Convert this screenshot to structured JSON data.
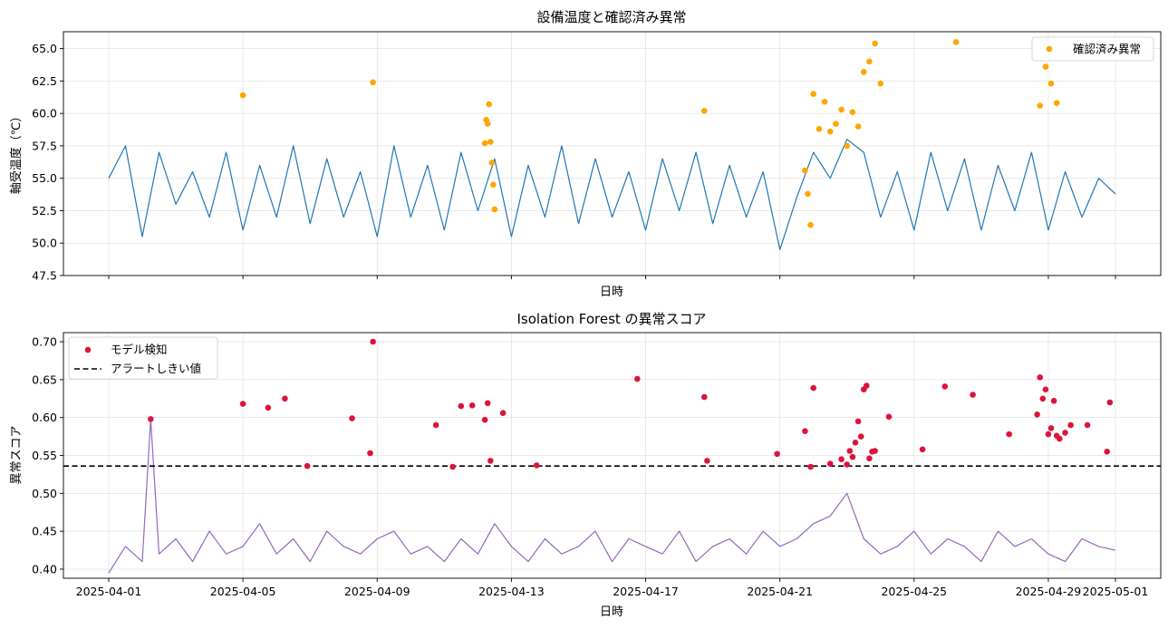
{
  "chart_data": [
    {
      "type": "line",
      "title": "設備温度と確認済み異常",
      "xlabel": "日時",
      "ylabel": "軸受温度（℃）",
      "x_range": [
        "2025-04-01",
        "2025-05-01"
      ],
      "xticks": [
        "2025-04-01",
        "2025-04-05",
        "2025-04-09",
        "2025-04-13",
        "2025-04-17",
        "2025-04-21",
        "2025-04-25",
        "2025-04-29",
        "2025-05-01"
      ],
      "x_tick_labels_shown": false,
      "ylim": [
        47.5,
        66.3
      ],
      "yticks": [
        47.5,
        50.0,
        52.5,
        55.0,
        57.5,
        60.0,
        62.5,
        65.0
      ],
      "grid": true,
      "legend_position": "top-right",
      "line_color": "#1f77b4",
      "marker_color": "#ffa500",
      "series": [
        {
          "name": "",
          "kind": "line",
          "x": [
            "2025-04-01T00:00",
            "2025-04-01T12:00",
            "2025-04-02T00:00",
            "2025-04-02T12:00",
            "2025-04-03T00:00",
            "2025-04-03T12:00",
            "2025-04-04T00:00",
            "2025-04-04T12:00",
            "2025-04-05T00:00",
            "2025-04-05T12:00",
            "2025-04-06T00:00",
            "2025-04-06T12:00",
            "2025-04-07T00:00",
            "2025-04-07T12:00",
            "2025-04-08T00:00",
            "2025-04-08T12:00",
            "2025-04-09T00:00",
            "2025-04-09T12:00",
            "2025-04-10T00:00",
            "2025-04-10T12:00",
            "2025-04-11T00:00",
            "2025-04-11T12:00",
            "2025-04-12T00:00",
            "2025-04-12T12:00",
            "2025-04-13T00:00",
            "2025-04-13T12:00",
            "2025-04-14T00:00",
            "2025-04-14T12:00",
            "2025-04-15T00:00",
            "2025-04-15T12:00",
            "2025-04-16T00:00",
            "2025-04-16T12:00",
            "2025-04-17T00:00",
            "2025-04-17T12:00",
            "2025-04-18T00:00",
            "2025-04-18T12:00",
            "2025-04-19T00:00",
            "2025-04-19T12:00",
            "2025-04-20T00:00",
            "2025-04-20T12:00",
            "2025-04-21T00:00",
            "2025-04-21T12:00",
            "2025-04-22T00:00",
            "2025-04-22T12:00",
            "2025-04-23T00:00",
            "2025-04-23T12:00",
            "2025-04-24T00:00",
            "2025-04-24T12:00",
            "2025-04-25T00:00",
            "2025-04-25T12:00",
            "2025-04-26T00:00",
            "2025-04-26T12:00",
            "2025-04-27T00:00",
            "2025-04-27T12:00",
            "2025-04-28T00:00",
            "2025-04-28T12:00",
            "2025-04-29T00:00",
            "2025-04-29T12:00",
            "2025-04-30T00:00",
            "2025-04-30T12:00",
            "2025-05-01T00:00"
          ],
          "y": [
            55.0,
            57.5,
            50.5,
            57.0,
            53.0,
            55.5,
            52.0,
            57.0,
            51.0,
            56.0,
            52.0,
            57.5,
            51.5,
            56.5,
            52.0,
            55.5,
            50.5,
            57.5,
            52.0,
            56.0,
            51.0,
            57.0,
            52.5,
            56.5,
            50.5,
            56.0,
            52.0,
            57.5,
            51.5,
            56.5,
            52.0,
            55.5,
            51.0,
            56.5,
            52.5,
            57.0,
            51.5,
            56.0,
            52.0,
            55.5,
            49.5,
            53.5,
            57.0,
            55.0,
            58.0,
            57.0,
            52.0,
            55.5,
            51.0,
            57.0,
            52.5,
            56.5,
            51.0,
            56.0,
            52.5,
            57.0,
            51.0,
            55.5,
            52.0,
            55.0,
            53.8
          ]
        },
        {
          "name": "確認済み異常",
          "kind": "scatter",
          "x": [
            "2025-04-05T00:00",
            "2025-04-08T21:00",
            "2025-04-12T05:00",
            "2025-04-12T06:00",
            "2025-04-12T07:00",
            "2025-04-12T08:00",
            "2025-04-12T09:00",
            "2025-04-12T10:00",
            "2025-04-12T11:00",
            "2025-04-12T12:00",
            "2025-04-18T18:00",
            "2025-04-21T18:00",
            "2025-04-21T20:00",
            "2025-04-21T22:00",
            "2025-04-22T00:00",
            "2025-04-22T04:00",
            "2025-04-22T08:00",
            "2025-04-22T12:00",
            "2025-04-22T16:00",
            "2025-04-22T20:00",
            "2025-04-23T00:00",
            "2025-04-23T04:00",
            "2025-04-23T08:00",
            "2025-04-23T12:00",
            "2025-04-23T16:00",
            "2025-04-23T20:00",
            "2025-04-24T00:00",
            "2025-04-26T06:00",
            "2025-04-28T18:00",
            "2025-04-28T22:00",
            "2025-04-29T02:00",
            "2025-04-29T06:00"
          ],
          "y": [
            61.4,
            62.4,
            57.7,
            59.5,
            59.2,
            60.7,
            57.8,
            56.2,
            54.5,
            52.6,
            60.2,
            55.6,
            53.8,
            51.4,
            61.5,
            58.8,
            60.9,
            58.6,
            59.2,
            60.3,
            57.5,
            60.1,
            59.0,
            63.2,
            64.0,
            65.4,
            62.3,
            65.5,
            60.6,
            63.6,
            62.3,
            60.8
          ]
        }
      ]
    },
    {
      "type": "line",
      "title": "Isolation Forest の異常スコア",
      "xlabel": "日時",
      "ylabel": "異常スコア",
      "x_range": [
        "2025-04-01",
        "2025-05-01"
      ],
      "xticks": [
        "2025-04-01",
        "2025-04-05",
        "2025-04-09",
        "2025-04-13",
        "2025-04-17",
        "2025-04-21",
        "2025-04-25",
        "2025-04-29",
        "2025-05-01"
      ],
      "ylim": [
        0.388,
        0.712
      ],
      "yticks": [
        0.4,
        0.45,
        0.5,
        0.55,
        0.6,
        0.65,
        0.7
      ],
      "grid": true,
      "legend_position": "top-left",
      "line_color": "#9467bd",
      "marker_color": "#dc143c",
      "threshold": 0.536,
      "series": [
        {
          "name": "",
          "kind": "line",
          "x": [
            "2025-04-01T00:00",
            "2025-04-01T12:00",
            "2025-04-02T00:00",
            "2025-04-02T06:00",
            "2025-04-02T12:00",
            "2025-04-03T00:00",
            "2025-04-03T12:00",
            "2025-04-04T00:00",
            "2025-04-04T12:00",
            "2025-04-05T00:00",
            "2025-04-05T12:00",
            "2025-04-06T00:00",
            "2025-04-06T12:00",
            "2025-04-07T00:00",
            "2025-04-07T12:00",
            "2025-04-08T00:00",
            "2025-04-08T12:00",
            "2025-04-09T00:00",
            "2025-04-09T12:00",
            "2025-04-10T00:00",
            "2025-04-10T12:00",
            "2025-04-11T00:00",
            "2025-04-11T12:00",
            "2025-04-12T00:00",
            "2025-04-12T12:00",
            "2025-04-13T00:00",
            "2025-04-13T12:00",
            "2025-04-14T00:00",
            "2025-04-14T12:00",
            "2025-04-15T00:00",
            "2025-04-15T12:00",
            "2025-04-16T00:00",
            "2025-04-16T12:00",
            "2025-04-17T00:00",
            "2025-04-17T12:00",
            "2025-04-18T00:00",
            "2025-04-18T12:00",
            "2025-04-19T00:00",
            "2025-04-19T12:00",
            "2025-04-20T00:00",
            "2025-04-20T12:00",
            "2025-04-21T00:00",
            "2025-04-21T12:00",
            "2025-04-22T00:00",
            "2025-04-22T12:00",
            "2025-04-23T00:00",
            "2025-04-23T12:00",
            "2025-04-24T00:00",
            "2025-04-24T12:00",
            "2025-04-25T00:00",
            "2025-04-25T12:00",
            "2025-04-26T00:00",
            "2025-04-26T12:00",
            "2025-04-27T00:00",
            "2025-04-27T12:00",
            "2025-04-28T00:00",
            "2025-04-28T12:00",
            "2025-04-29T00:00",
            "2025-04-29T12:00",
            "2025-04-30T00:00",
            "2025-04-30T12:00",
            "2025-05-01T00:00"
          ],
          "y": [
            0.395,
            0.43,
            0.41,
            0.598,
            0.42,
            0.44,
            0.41,
            0.45,
            0.42,
            0.43,
            0.46,
            0.42,
            0.44,
            0.41,
            0.45,
            0.43,
            0.42,
            0.44,
            0.45,
            0.42,
            0.43,
            0.41,
            0.44,
            0.42,
            0.46,
            0.43,
            0.41,
            0.44,
            0.42,
            0.43,
            0.45,
            0.41,
            0.44,
            0.43,
            0.42,
            0.45,
            0.41,
            0.43,
            0.44,
            0.42,
            0.45,
            0.43,
            0.44,
            0.46,
            0.47,
            0.5,
            0.44,
            0.42,
            0.43,
            0.45,
            0.42,
            0.44,
            0.43,
            0.41,
            0.45,
            0.43,
            0.44,
            0.42,
            0.41,
            0.44,
            0.43,
            0.425
          ]
        },
        {
          "name": "モデル検知",
          "kind": "scatter",
          "x": [
            "2025-04-02T06:00",
            "2025-04-05T00:00",
            "2025-04-05T18:00",
            "2025-04-06T06:00",
            "2025-04-06T22:00",
            "2025-04-08T06:00",
            "2025-04-08T21:00",
            "2025-04-08T19:00",
            "2025-04-10T18:00",
            "2025-04-11T06:00",
            "2025-04-11T12:00",
            "2025-04-11T20:00",
            "2025-04-12T05:00",
            "2025-04-12T07:00",
            "2025-04-12T09:00",
            "2025-04-12T18:00",
            "2025-04-13T18:00",
            "2025-04-16T18:00",
            "2025-04-18T18:00",
            "2025-04-18T20:00",
            "2025-04-20T22:00",
            "2025-04-21T18:00",
            "2025-04-21T22:00",
            "2025-04-22T00:00",
            "2025-04-22T12:00",
            "2025-04-22T20:00",
            "2025-04-23T00:00",
            "2025-04-23T02:00",
            "2025-04-23T04:00",
            "2025-04-23T06:00",
            "2025-04-23T08:00",
            "2025-04-23T10:00",
            "2025-04-23T12:00",
            "2025-04-23T14:00",
            "2025-04-23T16:00",
            "2025-04-23T18:00",
            "2025-04-23T20:00",
            "2025-04-24T06:00",
            "2025-04-25T06:00",
            "2025-04-25T22:00",
            "2025-04-26T18:00",
            "2025-04-27T20:00",
            "2025-04-28T16:00",
            "2025-04-28T18:00",
            "2025-04-28T20:00",
            "2025-04-28T22:00",
            "2025-04-29T00:00",
            "2025-04-29T02:00",
            "2025-04-29T04:00",
            "2025-04-29T06:00",
            "2025-04-29T08:00",
            "2025-04-29T12:00",
            "2025-04-29T16:00",
            "2025-04-30T04:00",
            "2025-04-30T18:00",
            "2025-04-30T20:00"
          ],
          "y": [
            0.598,
            0.618,
            0.613,
            0.625,
            0.536,
            0.599,
            0.7,
            0.553,
            0.59,
            0.535,
            0.615,
            0.616,
            0.597,
            0.619,
            0.543,
            0.606,
            0.537,
            0.651,
            0.627,
            0.543,
            0.552,
            0.582,
            0.535,
            0.639,
            0.539,
            0.545,
            0.538,
            0.556,
            0.548,
            0.567,
            0.595,
            0.575,
            0.637,
            0.642,
            0.546,
            0.555,
            0.556,
            0.601,
            0.558,
            0.641,
            0.63,
            0.578,
            0.604,
            0.653,
            0.625,
            0.637,
            0.578,
            0.586,
            0.622,
            0.576,
            0.572,
            0.58,
            0.59,
            0.59,
            0.555,
            0.62
          ]
        }
      ]
    }
  ],
  "legend_top": {
    "label": "確認済み異常"
  },
  "legend_bottom": {
    "detect_label": "モデル検知",
    "threshold_label": "アラートしきい値"
  }
}
